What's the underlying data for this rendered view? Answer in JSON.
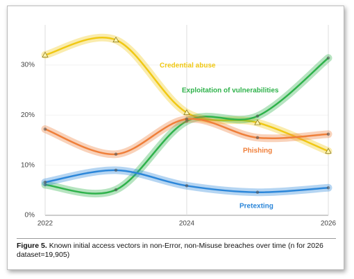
{
  "chart_data": {
    "type": "line",
    "x": [
      2022,
      2023,
      2024,
      2025,
      2026
    ],
    "xlim": [
      2022,
      2026
    ],
    "xticks": [
      2022,
      2024,
      2026
    ],
    "ylim": [
      0,
      38
    ],
    "yticks": [
      {
        "value": 0,
        "label": "0%"
      },
      {
        "value": 10,
        "label": "10%"
      },
      {
        "value": 20,
        "label": "20%"
      },
      {
        "value": 30,
        "label": "30%"
      }
    ],
    "grid": true,
    "series": [
      {
        "name": "Credential abuse",
        "color": "#f0c814",
        "marker": "triangle",
        "values": [
          32,
          35,
          20.5,
          18.5,
          12.8
        ]
      },
      {
        "name": "Exploitation of vulnerabilities",
        "color": "#2fb24b",
        "marker": "circle",
        "values": [
          6.1,
          5.1,
          18.8,
          19.8,
          31.4
        ]
      },
      {
        "name": "Phishing",
        "color": "#ef7f3a",
        "marker": "circle",
        "values": [
          17.2,
          12.2,
          19.2,
          15.5,
          16.2
        ]
      },
      {
        "name": "Pretexting",
        "color": "#2b86d9",
        "marker": "circle",
        "values": [
          6.6,
          9.0,
          5.9,
          4.6,
          5.5
        ]
      }
    ],
    "caption_label": "Figure 5.",
    "caption": "Known initial access vectors in non-Error, non-Misuse breaches over time (n for 2026 dataset=19,905)"
  }
}
